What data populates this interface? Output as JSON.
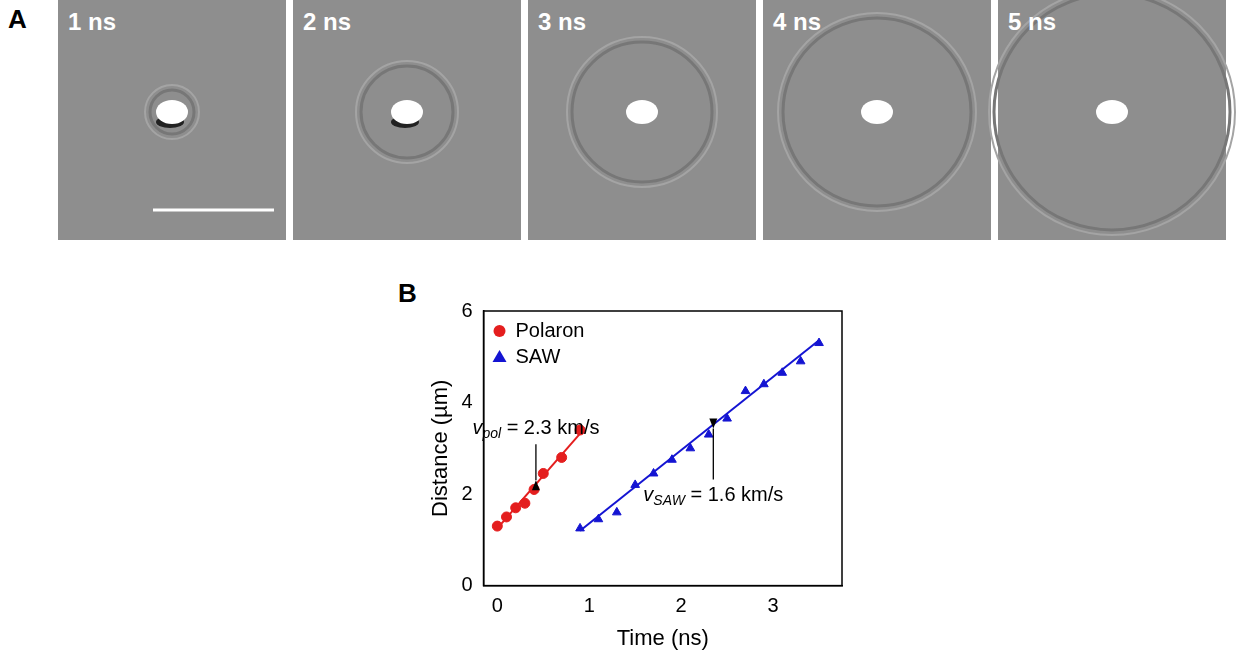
{
  "panel_a": {
    "label": "A",
    "frames": [
      "1 ns",
      "2 ns",
      "3 ns",
      "4 ns",
      "5 ns"
    ]
  },
  "chart_data": {
    "type": "scatter",
    "panel_label": "B",
    "x_label": "Time (ns)",
    "y_label": "Distance (µm)",
    "xlim": [
      -0.15,
      3.75
    ],
    "xticks": [
      0,
      1,
      2,
      3
    ],
    "ylim": [
      0,
      6
    ],
    "yticks": [
      0,
      2,
      4,
      6
    ],
    "grid": false,
    "legend": "upper left",
    "series": [
      {
        "name": "Polaron",
        "color": "#e41e1e",
        "marker": "circle",
        "x": [
          0,
          0.1,
          0.2,
          0.3,
          0.4,
          0.5,
          0.7,
          0.9
        ],
        "values": [
          1.3,
          1.5,
          1.7,
          1.8,
          2.1,
          2.45,
          2.8,
          3.4
        ],
        "fit": {
          "x": [
            0,
            0.9
          ],
          "values": [
            1.25,
            3.32
          ]
        },
        "annotation": {
          "symbol": "v",
          "subscript": "pol",
          "text": " = 2.3 km/s",
          "at": 0.42
        }
      },
      {
        "name": "SAW",
        "color": "#1414d2",
        "marker": "triangle",
        "x": [
          0.9,
          1.1,
          1.3,
          1.5,
          1.7,
          1.9,
          2.1,
          2.3,
          2.5,
          2.7,
          2.9,
          3.1,
          3.3,
          3.5
        ],
        "values": [
          1.25,
          1.45,
          1.6,
          2.2,
          2.45,
          2.75,
          3.0,
          3.3,
          3.65,
          4.25,
          4.4,
          4.65,
          4.9,
          5.3
        ],
        "fit": {
          "x": [
            0.9,
            3.5
          ],
          "values": [
            1.2,
            5.36
          ]
        },
        "annotation": {
          "symbol": "v",
          "subscript": "SAW",
          "text": " = 1.6 km/s",
          "at": 2.35
        }
      }
    ]
  }
}
